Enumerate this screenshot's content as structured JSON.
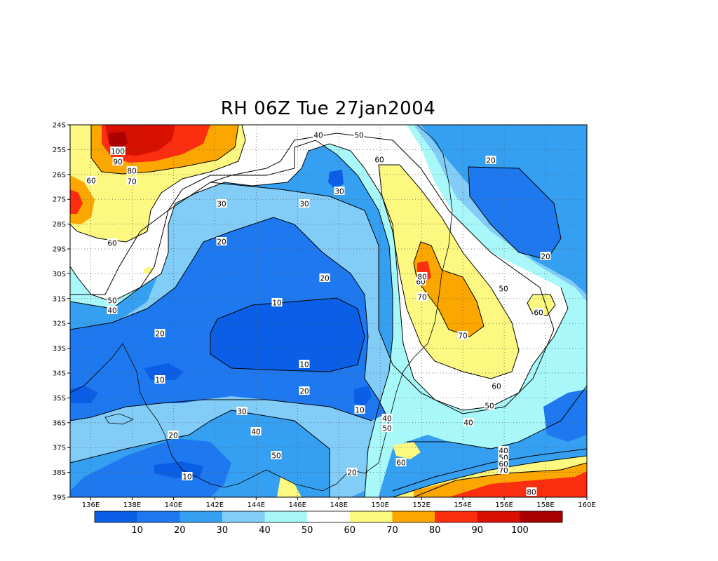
{
  "title": "RH 06Z Tue 27jan2004",
  "colors": {
    "c0_10": "#0a5fe6",
    "c10_20": "#1e78f0",
    "c20_30": "#35a0f2",
    "c30_40": "#82cdf8",
    "c40_50": "#a8f8fa",
    "c50_60": "#ffffff",
    "c60_70": "#fdf880",
    "c70_80": "#fca600",
    "c80_90": "#fb2e10",
    "c90_100": "#d81000",
    "c100_plus": "#aa0000",
    "contour": "#000000"
  },
  "axes": {
    "lon_ticks": [
      "136E",
      "138E",
      "140E",
      "142E",
      "144E",
      "146E",
      "148E",
      "150E",
      "152E",
      "154E",
      "156E",
      "158E",
      "160E"
    ],
    "lat_ticks": [
      "24S",
      "25S",
      "26S",
      "27S",
      "28S",
      "29S",
      "30S",
      "31S",
      "32S",
      "33S",
      "34S",
      "35S",
      "36S",
      "37S",
      "38S",
      "39S"
    ],
    "lon_range": [
      135,
      160
    ],
    "lat_range": [
      -39,
      -24
    ],
    "grid": "dotted"
  },
  "colorbar": {
    "labels": [
      "10",
      "20",
      "30",
      "40",
      "50",
      "60",
      "70",
      "80",
      "90",
      "100"
    ]
  },
  "contour_labels": [
    "100",
    "90",
    "80",
    "70",
    "60",
    "60",
    "50",
    "40",
    "30",
    "30",
    "30",
    "20",
    "20",
    "20",
    "10",
    "10",
    "10",
    "10",
    "20",
    "20",
    "30",
    "40",
    "50",
    "40",
    "50",
    "60",
    "60",
    "70",
    "80",
    "70",
    "60",
    "50",
    "40",
    "50",
    "40",
    "30",
    "20",
    "40",
    "50",
    "60",
    "70",
    "80",
    "40",
    "50",
    "60",
    "20",
    "10",
    "60",
    "20",
    "50",
    "60"
  ]
}
